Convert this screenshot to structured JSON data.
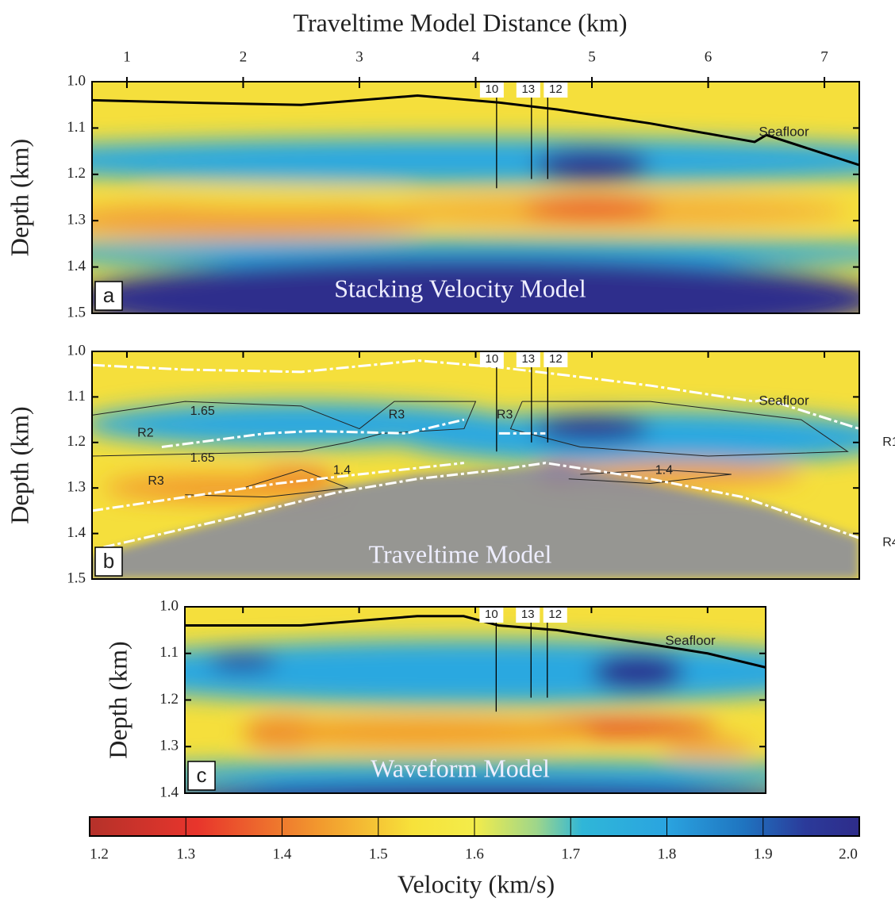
{
  "x_axis": {
    "label": "Traveltime Model Distance (km)",
    "xlim": [
      0.7,
      7.3
    ],
    "xticks": [
      1,
      2,
      3,
      4,
      5,
      6,
      7
    ]
  },
  "panels": [
    {
      "type": "heatmap",
      "letter": "a",
      "title": "Stacking Velocity Model",
      "ylabel": "Depth (km)",
      "xlim": [
        0.7,
        7.3
      ],
      "ylim": [
        1.0,
        1.5
      ],
      "yticks": [
        {
          "value": 1.0,
          "label": "1.0"
        },
        1.1,
        1.2,
        1.3,
        1.4,
        1.5
      ],
      "feature": "Seafloor",
      "seafloor": {
        "x": [
          0.7,
          1.5,
          2.5,
          3.5,
          4.2,
          4.7,
          5.5,
          6.4,
          6.5,
          7.3
        ],
        "y": [
          1.04,
          1.045,
          1.05,
          1.03,
          1.045,
          1.06,
          1.09,
          1.13,
          1.115,
          1.18
        ]
      },
      "wells": [
        {
          "label": "10",
          "x": 4.18,
          "bottom": 1.23
        },
        {
          "label": "13",
          "x": 4.48,
          "bottom": 1.21
        },
        {
          "label": "12",
          "x": 4.62,
          "bottom": 1.21
        }
      ]
    },
    {
      "type": "heatmap",
      "letter": "b",
      "title": "Traveltime Model",
      "ylabel": "Depth (km)",
      "xlim": [
        0.7,
        7.3
      ],
      "ylim": [
        1.0,
        1.5
      ],
      "yticks": [
        {
          "value": 1.0,
          "label": "1.0"
        },
        1.1,
        1.2,
        1.3,
        1.4,
        1.5
      ],
      "feature": "Seafloor",
      "seafloor": {
        "x": [
          0.7,
          1.5,
          2.5,
          3.5,
          4.2,
          4.7,
          5.5,
          6.4,
          6.5,
          7.3
        ],
        "y": [
          1.03,
          1.04,
          1.045,
          1.02,
          1.035,
          1.05,
          1.075,
          1.11,
          1.105,
          1.17
        ]
      },
      "wells": [
        {
          "label": "10",
          "x": 4.18,
          "bottom": 1.22
        },
        {
          "label": "13",
          "x": 4.48,
          "bottom": 1.2
        },
        {
          "label": "12",
          "x": 4.62,
          "bottom": 1.2
        }
      ],
      "annotations": [
        "1.65",
        "1.65",
        "1.4",
        "1.4",
        "R2",
        "R3",
        "R3",
        "R3",
        "R1",
        "R4"
      ]
    },
    {
      "type": "heatmap",
      "letter": "c",
      "title": "Waveform Model",
      "ylabel": "Depth (km)",
      "xlim": [
        1.5,
        6.5
      ],
      "ylim": [
        1.0,
        1.4
      ],
      "yticks": [
        {
          "value": 1.0,
          "label": "1.0"
        },
        1.1,
        1.2,
        1.3,
        1.4
      ],
      "feature": "Seafloor",
      "seafloor": {
        "x": [
          1.5,
          2.5,
          3.0,
          3.5,
          3.9,
          4.2,
          4.7,
          5.5,
          6.0,
          6.5
        ],
        "y": [
          1.04,
          1.04,
          1.03,
          1.02,
          1.02,
          1.04,
          1.05,
          1.08,
          1.1,
          1.13
        ]
      },
      "wells": [
        {
          "label": "10",
          "x": 4.18,
          "bottom": 1.225
        },
        {
          "label": "13",
          "x": 4.48,
          "bottom": 1.195
        },
        {
          "label": "12",
          "x": 4.62,
          "bottom": 1.195
        }
      ]
    }
  ],
  "colorbar": {
    "label": "Velocity (km/s)",
    "lim": [
      1.2,
      2.0
    ],
    "ticks": [
      1.2,
      1.3,
      1.4,
      1.5,
      1.6,
      1.7,
      1.8,
      1.9,
      {
        "value": 2.0,
        "label": "2.0"
      }
    ]
  }
}
